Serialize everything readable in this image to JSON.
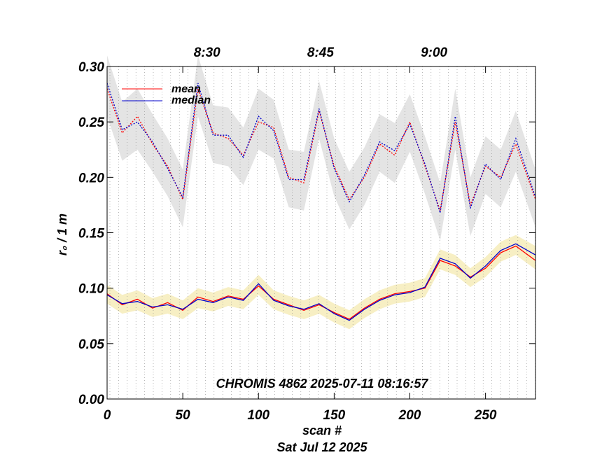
{
  "chart_data": {
    "type": "line",
    "title": "CHROMIS 4862 2025-07-11 08:16:57",
    "xlabel": "scan #",
    "xlabel2": "Sat Jul 12 2025",
    "ylabel": "r₀ / 1 m",
    "xlim": [
      0,
      283
    ],
    "ylim": [
      0,
      0.3
    ],
    "x_ticks": [
      0,
      50,
      100,
      150,
      200,
      250
    ],
    "x_tick_labels": [
      "0",
      "50",
      "100",
      "150",
      "200",
      "250"
    ],
    "y_ticks": [
      0.0,
      0.05,
      0.1,
      0.15,
      0.2,
      0.25,
      0.3
    ],
    "y_tick_labels": [
      "0.00",
      "0.05",
      "0.10",
      "0.15",
      "0.20",
      "0.25",
      "0.30"
    ],
    "time_ticks": [
      {
        "label": "8:30",
        "scan": 66
      },
      {
        "label": "8:45",
        "scan": 141
      },
      {
        "label": "9:00",
        "scan": 216
      }
    ],
    "legend": {
      "position": "top-left",
      "entries": [
        {
          "name": "mean",
          "color": "#ff0000"
        },
        {
          "name": "median",
          "color": "#0000cc"
        }
      ]
    },
    "colors": {
      "mean": "#ff0000",
      "median": "#0000cc",
      "upper_band": "#dddddd",
      "lower_band": "#f0e08a",
      "grid": "#888888"
    },
    "x": [
      0,
      10,
      20,
      30,
      40,
      50,
      60,
      70,
      80,
      90,
      100,
      110,
      120,
      130,
      140,
      150,
      160,
      170,
      180,
      190,
      200,
      210,
      220,
      230,
      240,
      250,
      260,
      270,
      283
    ],
    "series": [
      {
        "name": "mean",
        "style": "solid",
        "band": "lower",
        "values": [
          0.095,
          0.085,
          0.09,
          0.082,
          0.087,
          0.08,
          0.092,
          0.088,
          0.093,
          0.09,
          0.102,
          0.09,
          0.085,
          0.08,
          0.085,
          0.078,
          0.072,
          0.082,
          0.09,
          0.095,
          0.097,
          0.1,
          0.125,
          0.12,
          0.11,
          0.118,
          0.132,
          0.138,
          0.125
        ]
      },
      {
        "name": "median",
        "style": "solid",
        "band": "lower",
        "values": [
          0.094,
          0.086,
          0.088,
          0.083,
          0.085,
          0.081,
          0.09,
          0.087,
          0.092,
          0.089,
          0.104,
          0.089,
          0.084,
          0.081,
          0.086,
          0.077,
          0.071,
          0.081,
          0.089,
          0.094,
          0.096,
          0.101,
          0.127,
          0.122,
          0.109,
          0.12,
          0.134,
          0.14,
          0.13
        ]
      },
      {
        "name": "mean (upper)",
        "style": "dotted",
        "band": "upper",
        "values": [
          0.28,
          0.24,
          0.255,
          0.23,
          0.21,
          0.18,
          0.28,
          0.24,
          0.235,
          0.22,
          0.25,
          0.245,
          0.2,
          0.195,
          0.26,
          0.21,
          0.18,
          0.2,
          0.23,
          0.22,
          0.25,
          0.21,
          0.17,
          0.25,
          0.175,
          0.21,
          0.2,
          0.23,
          0.18
        ]
      },
      {
        "name": "median (upper)",
        "style": "dotted",
        "band": "upper",
        "values": [
          0.285,
          0.243,
          0.25,
          0.232,
          0.208,
          0.182,
          0.285,
          0.238,
          0.238,
          0.218,
          0.255,
          0.242,
          0.198,
          0.198,
          0.262,
          0.208,
          0.178,
          0.202,
          0.232,
          0.224,
          0.248,
          0.212,
          0.168,
          0.255,
          0.172,
          0.212,
          0.198,
          0.235,
          0.182
        ]
      }
    ]
  }
}
